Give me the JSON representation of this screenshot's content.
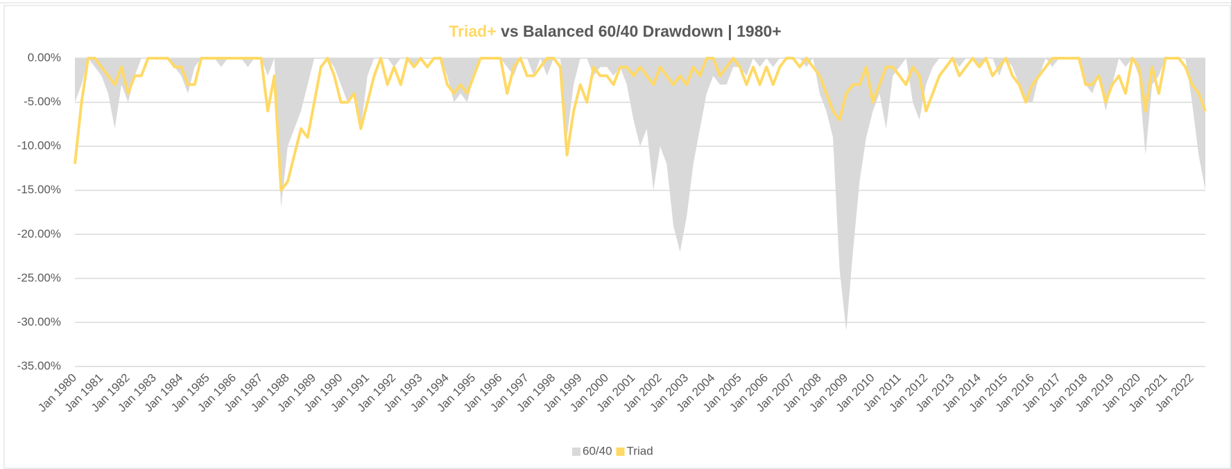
{
  "chart_data": {
    "type": "area-line",
    "title_highlight": "Triad+",
    "title": "vs Balanced 60/40 Drawdown | 1980+",
    "title_highlight_color": "#ffd966",
    "categories": [
      "Jan 1980",
      null,
      null,
      null,
      "Jan 1981",
      null,
      null,
      null,
      "Jan 1982",
      null,
      null,
      null,
      "Jan 1983",
      null,
      null,
      null,
      "Jan 1984",
      null,
      null,
      null,
      "Jan 1985",
      null,
      null,
      null,
      "Jan 1986",
      null,
      null,
      null,
      "Jan 1987",
      null,
      null,
      null,
      "Jan 1988",
      null,
      null,
      null,
      "Jan 1989",
      null,
      null,
      null,
      "Jan 1990",
      null,
      null,
      null,
      "Jan 1991",
      null,
      null,
      null,
      "Jan 1992",
      null,
      null,
      null,
      "Jan 1993",
      null,
      null,
      null,
      "Jan 1994",
      null,
      null,
      null,
      "Jan 1995",
      null,
      null,
      null,
      "Jan 1996",
      null,
      null,
      null,
      "Jan 1997",
      null,
      null,
      null,
      "Jan 1998",
      null,
      null,
      null,
      "Jan 1999",
      null,
      null,
      null,
      "Jan 2000",
      null,
      null,
      null,
      "Jan 2001",
      null,
      null,
      null,
      "Jan 2002",
      null,
      null,
      null,
      "Jan 2003",
      null,
      null,
      null,
      "Jan 2004",
      null,
      null,
      null,
      "Jan 2005",
      null,
      null,
      null,
      "Jan 2006",
      null,
      null,
      null,
      "Jan 2007",
      null,
      null,
      null,
      "Jan 2008",
      null,
      null,
      null,
      "Jan 2009",
      null,
      null,
      null,
      "Jan 2010",
      null,
      null,
      null,
      "Jan 2011",
      null,
      null,
      null,
      "Jan 2012",
      null,
      null,
      null,
      "Jan 2013",
      null,
      null,
      null,
      "Jan 2014",
      null,
      null,
      null,
      "Jan 2015",
      null,
      null,
      null,
      "Jan 2016",
      null,
      null,
      null,
      "Jan 2017",
      null,
      null,
      null,
      "Jan 2018",
      null,
      null,
      null,
      "Jan 2019",
      null,
      null,
      null,
      "Jan 2020",
      null,
      null,
      null,
      "Jan 2021",
      null,
      null,
      null,
      "Jan 2022",
      null,
      null
    ],
    "series": [
      {
        "name": "60/40",
        "color": "#d9d9d9",
        "kind": "area",
        "values": [
          -5,
          -3,
          0,
          -1,
          -2,
          -4,
          -8,
          -3,
          -5,
          -2,
          0,
          0,
          0,
          0,
          0,
          -1,
          -2,
          -4,
          -1,
          0,
          0,
          0,
          -1,
          0,
          0,
          0,
          -1,
          0,
          0,
          -2,
          0,
          -17,
          -10,
          -8,
          -6,
          -3,
          0,
          0,
          0,
          -1,
          -3,
          -5,
          -4,
          -8,
          -2,
          0,
          0,
          0,
          -1,
          0,
          0,
          -1,
          0,
          0,
          0,
          0,
          -2,
          -5,
          -4,
          -5,
          -2,
          0,
          0,
          0,
          0,
          -1,
          -2,
          0,
          0,
          -2,
          0,
          -2,
          0,
          0,
          -9,
          -3,
          0,
          0,
          -2,
          -1,
          -1,
          -2,
          -1,
          -3,
          -7,
          -10,
          -8,
          -15,
          -10,
          -12,
          -19,
          -22,
          -18,
          -12,
          -8,
          -4,
          -2,
          -3,
          -3,
          -1,
          -1,
          -2,
          0,
          -1,
          0,
          -1,
          0,
          0,
          0,
          0,
          -1,
          0,
          -4,
          -6,
          -9,
          -24,
          -31,
          -22,
          -14,
          -9,
          -6,
          -4,
          -8,
          -2,
          -1,
          0,
          -5,
          -7,
          -3,
          -1,
          0,
          0,
          0,
          -1,
          0,
          0,
          -1,
          0,
          0,
          -2,
          0,
          -1,
          -3,
          -5,
          -5,
          -2,
          0,
          -1,
          0,
          0,
          0,
          0,
          -3,
          -4,
          -2,
          -6,
          -3,
          0,
          -1,
          0,
          -2,
          -11,
          -3,
          -2,
          0,
          0,
          0,
          0,
          -5,
          -11,
          -15
        ]
      },
      {
        "name": "Triad",
        "color": "#ffd966",
        "kind": "line",
        "values": [
          -12,
          -5,
          0,
          0,
          -1,
          -2,
          -3,
          -1,
          -4,
          -2,
          -2,
          0,
          0,
          0,
          0,
          -1,
          -1,
          -3,
          -3,
          0,
          0,
          0,
          0,
          0,
          0,
          0,
          0,
          0,
          0,
          -6,
          -2,
          -15,
          -14,
          -11,
          -8,
          -9,
          -5,
          -1,
          0,
          -2,
          -5,
          -5,
          -4,
          -8,
          -5,
          -2,
          0,
          -3,
          -1,
          -3,
          0,
          -1,
          0,
          -1,
          0,
          0,
          -3,
          -4,
          -3,
          -4,
          -2,
          0,
          0,
          0,
          0,
          -4,
          -1,
          0,
          -2,
          -2,
          -1,
          0,
          0,
          -1,
          -11,
          -6,
          -3,
          -5,
          -1,
          -2,
          -2,
          -3,
          -1,
          -1,
          -2,
          -1,
          -2,
          -3,
          -1,
          -2,
          -3,
          -2,
          -3,
          -1,
          -2,
          0,
          0,
          -2,
          -1,
          0,
          -1,
          -3,
          -1,
          -3,
          -1,
          -3,
          -1,
          0,
          0,
          -1,
          0,
          -1,
          -2,
          -4,
          -6,
          -7,
          -4,
          -3,
          -3,
          -1,
          -5,
          -3,
          -1,
          -1,
          -2,
          -3,
          -1,
          -2,
          -6,
          -4,
          -2,
          -1,
          0,
          -2,
          -1,
          0,
          -1,
          0,
          -2,
          -1,
          0,
          -2,
          -3,
          -5,
          -3,
          -2,
          -1,
          0,
          0,
          0,
          0,
          0,
          -3,
          -3,
          -2,
          -5,
          -3,
          -2,
          -4,
          0,
          -1,
          -6,
          -1,
          -4,
          0,
          0,
          0,
          -1,
          -3,
          -4,
          -6
        ]
      }
    ],
    "ylim": [
      -35,
      0
    ],
    "yticks": [
      {
        "value": 0,
        "label": "0.00%"
      },
      {
        "value": -5,
        "label": "-5.00%"
      },
      {
        "value": -10,
        "label": "-10.00%"
      },
      {
        "value": -15,
        "label": "-15.00%"
      },
      {
        "value": -20,
        "label": "-20.00%"
      },
      {
        "value": -25,
        "label": "-25.00%"
      },
      {
        "value": -30,
        "label": "-30.00%"
      },
      {
        "value": -35,
        "label": "-35.00%"
      }
    ],
    "grid": true,
    "legend": "bottom"
  }
}
